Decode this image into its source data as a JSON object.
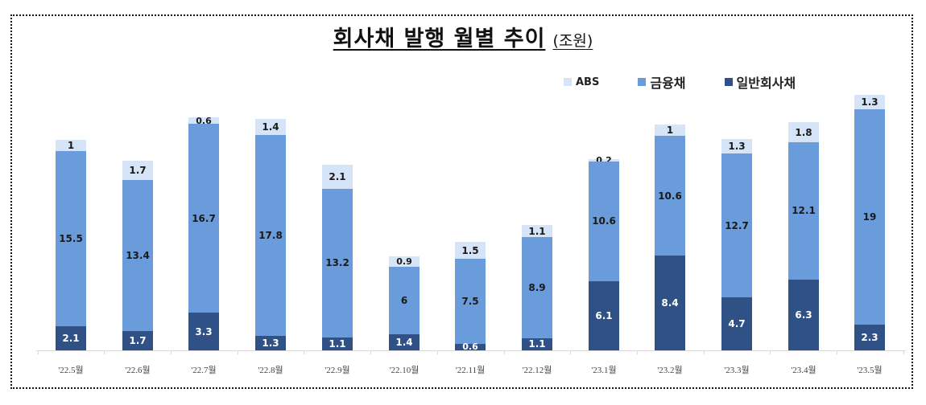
{
  "title": {
    "main": "회사채 발행 월별 추이",
    "unit": "(조원)"
  },
  "legend": [
    {
      "key": "abs",
      "label": "ABS",
      "color": "#d6e4f7"
    },
    {
      "key": "fin",
      "label": "금융채",
      "color": "#6a9bdb"
    },
    {
      "key": "gen",
      "label": "일반회사채",
      "color": "#2f5185"
    }
  ],
  "chart_data": {
    "type": "bar",
    "stacked": true,
    "title": "회사채 발행 월별 추이 (조원)",
    "xlabel": "",
    "ylabel": "조원",
    "categories": [
      "'22.5월",
      "'22.6월",
      "'22.7월",
      "'22.8월",
      "'22.9월",
      "'22.10월",
      "'22.11월",
      "'22.12월",
      "'23.1월",
      "'23.2월",
      "'23.3월",
      "'23.4월",
      "'23.5월"
    ],
    "series": [
      {
        "name": "일반회사채",
        "color": "#2f5185",
        "values": [
          2.1,
          1.7,
          3.3,
          1.3,
          1.1,
          1.4,
          0.6,
          1.1,
          6.1,
          8.4,
          4.7,
          6.3,
          2.3
        ]
      },
      {
        "name": "금융채",
        "color": "#6a9bdb",
        "values": [
          15.5,
          13.4,
          16.7,
          17.8,
          13.2,
          6,
          7.5,
          8.9,
          10.6,
          10.6,
          12.7,
          12.1,
          19
        ]
      },
      {
        "name": "ABS",
        "color": "#d6e4f7",
        "values": [
          1,
          1.7,
          0.6,
          1.4,
          2.1,
          0.9,
          1.5,
          1.1,
          0.2,
          1,
          1.3,
          1.8,
          1.3
        ]
      }
    ],
    "legend_position": "top-right",
    "grid": false,
    "ylim": [
      0,
      23
    ]
  }
}
